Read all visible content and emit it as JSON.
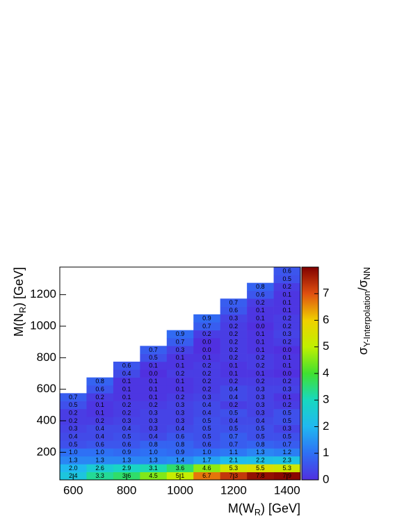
{
  "chart_data": {
    "type": "heatmap",
    "xlabel": [
      "M(W",
      "R",
      ") [GeV]"
    ],
    "ylabel": [
      "M(N",
      "R",
      ") [GeV]"
    ],
    "zlabel": [
      "σ",
      "Y-Interpolation",
      "/σ",
      "NN"
    ],
    "x": [
      600,
      700,
      800,
      900,
      1000,
      1100,
      1200,
      1300,
      1400
    ],
    "y": [
      50,
      100,
      150,
      200,
      250,
      300,
      350,
      400,
      450,
      500,
      550,
      600,
      650,
      700,
      750,
      800,
      850,
      900,
      950,
      1000,
      1050,
      1100,
      1150,
      1200,
      1250,
      1300,
      1350
    ],
    "xlim": [
      550,
      1450
    ],
    "ylim": [
      25,
      1375
    ],
    "zlim": [
      0,
      8
    ],
    "xticks": [
      600,
      800,
      1000,
      1200,
      1400
    ],
    "yticks": [
      200,
      400,
      600,
      800,
      1000,
      1200
    ],
    "zticks": [
      0,
      1,
      2,
      3,
      4,
      5,
      6,
      7
    ],
    "palette": [
      "#5030e0",
      "#2e70f5",
      "#20b8f0",
      "#18d8c0",
      "#40e030",
      "#c0f000",
      "#f0d000",
      "#e05010",
      "#800000"
    ],
    "z": [
      [
        2.4,
        3.3,
        3.6,
        4.5,
        5.1,
        6.7,
        7.3,
        7.8,
        7.9
      ],
      [
        2.0,
        2.6,
        2.9,
        3.1,
        3.6,
        4.6,
        5.3,
        5.5,
        5.3
      ],
      [
        1.3,
        1.3,
        1.3,
        1.3,
        1.4,
        1.7,
        2.1,
        2.2,
        2.3
      ],
      [
        1.0,
        1.0,
        0.9,
        1.0,
        0.9,
        1.0,
        1.1,
        1.3,
        1.2
      ],
      [
        0.5,
        0.6,
        0.6,
        0.8,
        0.8,
        0.6,
        0.7,
        0.8,
        0.7
      ],
      [
        0.4,
        0.4,
        0.5,
        0.4,
        0.6,
        0.5,
        0.7,
        0.5,
        0.5
      ],
      [
        0.3,
        0.4,
        0.4,
        0.3,
        0.4,
        0.5,
        0.5,
        0.5,
        0.3
      ],
      [
        0.2,
        0.2,
        0.3,
        0.3,
        0.3,
        0.5,
        0.4,
        0.4,
        0.5
      ],
      [
        0.2,
        0.1,
        0.2,
        0.3,
        0.3,
        0.4,
        0.5,
        0.3,
        0.5
      ],
      [
        0.5,
        0.1,
        0.2,
        0.2,
        0.3,
        0.4,
        0.2,
        0.3,
        0.2
      ],
      [
        0.7,
        0.2,
        0.1,
        0.1,
        0.2,
        0.3,
        0.4,
        0.3,
        0.1
      ],
      [
        null,
        0.6,
        0.1,
        0.1,
        0.1,
        0.2,
        0.4,
        0.3,
        0.3
      ],
      [
        null,
        0.8,
        0.1,
        0.1,
        0.1,
        0.2,
        0.2,
        0.2,
        0.2
      ],
      [
        null,
        null,
        0.4,
        0.0,
        0.2,
        0.2,
        0.1,
        0.1,
        0.0
      ],
      [
        null,
        null,
        0.6,
        0.1,
        0.1,
        0.2,
        0.1,
        0.2,
        0.1
      ],
      [
        null,
        null,
        null,
        0.5,
        0.1,
        0.1,
        0.2,
        0.2,
        0.1
      ],
      [
        null,
        null,
        null,
        0.7,
        0.3,
        0.0,
        0.2,
        0.1,
        0.0
      ],
      [
        null,
        null,
        null,
        null,
        0.7,
        0.0,
        0.2,
        0.1,
        0.2
      ],
      [
        null,
        null,
        null,
        null,
        0.9,
        0.2,
        0.2,
        0.1,
        0.3
      ],
      [
        null,
        null,
        null,
        null,
        null,
        0.7,
        0.2,
        0.0,
        0.2
      ],
      [
        null,
        null,
        null,
        null,
        null,
        0.9,
        0.3,
        0.1,
        0.2
      ],
      [
        null,
        null,
        null,
        null,
        null,
        null,
        0.6,
        0.1,
        0.1
      ],
      [
        null,
        null,
        null,
        null,
        null,
        null,
        0.7,
        0.2,
        0.1
      ],
      [
        null,
        null,
        null,
        null,
        null,
        null,
        null,
        0.6,
        0.1
      ],
      [
        null,
        null,
        null,
        null,
        null,
        null,
        null,
        0.8,
        0.2
      ],
      [
        null,
        null,
        null,
        null,
        null,
        null,
        null,
        null,
        0.5
      ],
      [
        null,
        null,
        null,
        null,
        null,
        null,
        null,
        null,
        0.6
      ]
    ],
    "value_labels": [
      [
        "2.4",
        "3.3",
        "3.6",
        "4.5",
        "5.1",
        "6.7",
        "7.3",
        "7.8",
        "7.9"
      ],
      [
        "2.0",
        "2.6",
        "2.9",
        "3.1",
        "3.6",
        "4.6",
        "5.3",
        "5.5",
        "5.3"
      ],
      [
        "1.3",
        "1.3",
        "1.3",
        "1.3",
        "1.4",
        "1.7",
        "2.1",
        "2.2",
        "2.3"
      ],
      [
        "1.0",
        "1.0",
        "0.9",
        "1.0",
        "0.9",
        "1.0",
        "1.1",
        "1.3",
        "1.2"
      ],
      [
        "0.5",
        "0.6",
        "0.6",
        "0.8",
        "0.8",
        "0.6",
        "0.7",
        "0.8",
        "0.7"
      ],
      [
        "0.4",
        "0.4",
        "0.5",
        "0.4",
        "0.6",
        "0.5",
        "0.7",
        "0.5",
        "0.5"
      ],
      [
        "0.3",
        "0.4",
        "0.4",
        "0.3",
        "0.4",
        "0.5",
        "0.5",
        "0.5",
        "0.3"
      ],
      [
        "0.2",
        "0.2",
        "0.3",
        "0.3",
        "0.3",
        "0.5",
        "0.4",
        "0.4",
        "0.5"
      ],
      [
        "0.2",
        "0.1",
        "0.2",
        "0.3",
        "0.3",
        "0.4",
        "0.5",
        "0.3",
        "0.5"
      ],
      [
        "0.5",
        "0.1",
        "0.2",
        "0.2",
        "0.3",
        "0.4",
        "0.2",
        "0.3",
        "0.2"
      ],
      [
        "0.7",
        "0.2",
        "0.1",
        "0.1",
        "0.2",
        "0.3",
        "0.4",
        "0.3",
        "0.1"
      ],
      [
        null,
        "0.6",
        "0.1",
        "0.1",
        "0.1",
        "0.2",
        "0.4",
        "0.3",
        "0.3"
      ],
      [
        null,
        "0.8",
        "0.1",
        "0.1",
        "0.1",
        "0.2",
        "0.2",
        "0.2",
        "0.2"
      ],
      [
        null,
        null,
        "0.4",
        "0.0",
        "0.2",
        "0.2",
        "0.1",
        "0.1",
        "0.0"
      ],
      [
        null,
        null,
        "0.6",
        "0.1",
        "0.1",
        "0.2",
        "0.1",
        "0.2",
        "0.1"
      ],
      [
        null,
        null,
        null,
        "0.5",
        "0.1",
        "0.1",
        "0.2",
        "0.2",
        "0.1"
      ],
      [
        null,
        null,
        null,
        "0.7",
        "0.3",
        "0.0",
        "0.2",
        "0.1",
        "0.0"
      ],
      [
        null,
        null,
        null,
        null,
        "0.7",
        "0.0",
        "0.2",
        "0.1",
        "0.2"
      ],
      [
        null,
        null,
        null,
        null,
        "0.9",
        "0.2",
        "0.2",
        "0.1",
        "0.3"
      ],
      [
        null,
        null,
        null,
        null,
        null,
        "0.7",
        "0.2",
        "0.0",
        "0.2"
      ],
      [
        null,
        null,
        null,
        null,
        null,
        "0.9",
        "0.3",
        "0.1",
        "0.2"
      ],
      [
        null,
        null,
        null,
        null,
        null,
        null,
        "0.6",
        "0.1",
        "0.1"
      ],
      [
        null,
        null,
        null,
        null,
        null,
        null,
        "0.7",
        "0.2",
        "0.1"
      ],
      [
        null,
        null,
        null,
        null,
        null,
        null,
        null,
        "0.6",
        "0.1"
      ],
      [
        null,
        null,
        null,
        null,
        null,
        null,
        null,
        "0.8",
        "0.2"
      ],
      [
        null,
        null,
        null,
        null,
        null,
        null,
        null,
        null,
        "0.5"
      ],
      [
        null,
        null,
        null,
        null,
        null,
        null,
        null,
        null,
        "0.6"
      ]
    ]
  }
}
